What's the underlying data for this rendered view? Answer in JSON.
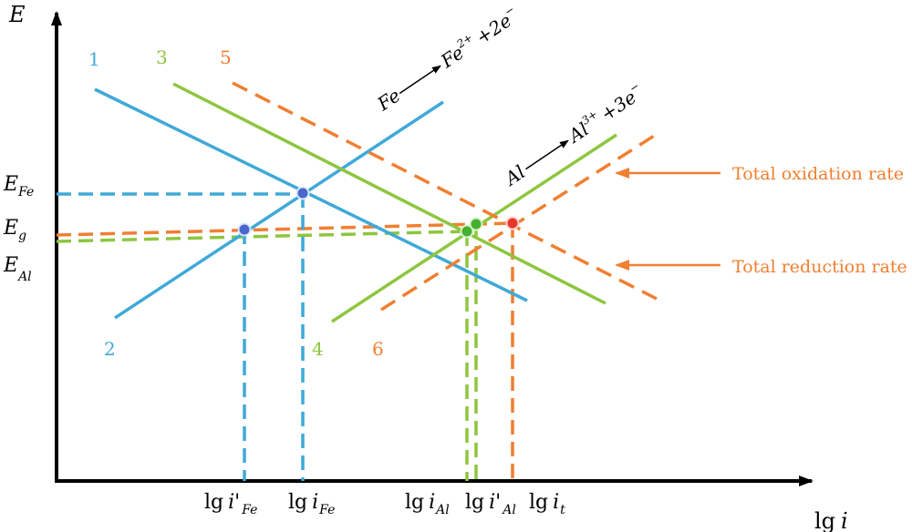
{
  "axes": {
    "y_label": "E",
    "x_label_lg": "lg",
    "x_label_i": "i"
  },
  "line_numbers": [
    "1",
    "2",
    "3",
    "4",
    "5",
    "6"
  ],
  "reactions": {
    "fe_left": "Fe",
    "fe_right_base": "Fe",
    "fe_right_sup": "2+",
    "fe_right_tail": "+2e",
    "fe_right_tail_sup": "−",
    "al_left": "Al",
    "al_right_base": "Al",
    "al_right_sup": "3+",
    "al_right_tail": "+3e",
    "al_right_tail_sup": "−"
  },
  "y_ticks": {
    "fe": {
      "base": "E",
      "sub": "Fe"
    },
    "g": {
      "base": "E",
      "sub": "g"
    },
    "al": {
      "base": "E",
      "sub": "Al"
    }
  },
  "x_ticks": {
    "i_prime_fe": {
      "lg": "lg",
      "i": "i",
      "prime": "'",
      "sub": "Fe"
    },
    "i_fe": {
      "lg": "lg",
      "i": "i",
      "sub": "Fe"
    },
    "i_al": {
      "lg": "lg",
      "i": "i",
      "sub": "Al"
    },
    "i_prime_al": {
      "lg": "lg",
      "i": "i",
      "prime": "'",
      "sub": "Al"
    },
    "i_t": {
      "lg": "lg",
      "i": "i",
      "sub": "t"
    }
  },
  "annotations": {
    "total_oxidation": "Total oxidation rate",
    "total_reduction": "Total reduction rate"
  },
  "colors": {
    "blue": "#3fa9d8",
    "green": "#8dc63f",
    "orange": "#f07f31",
    "axis": "#000000",
    "dot_blue": "#4a67c9",
    "dot_green": "#45b030",
    "dot_red": "#e8362a"
  }
}
